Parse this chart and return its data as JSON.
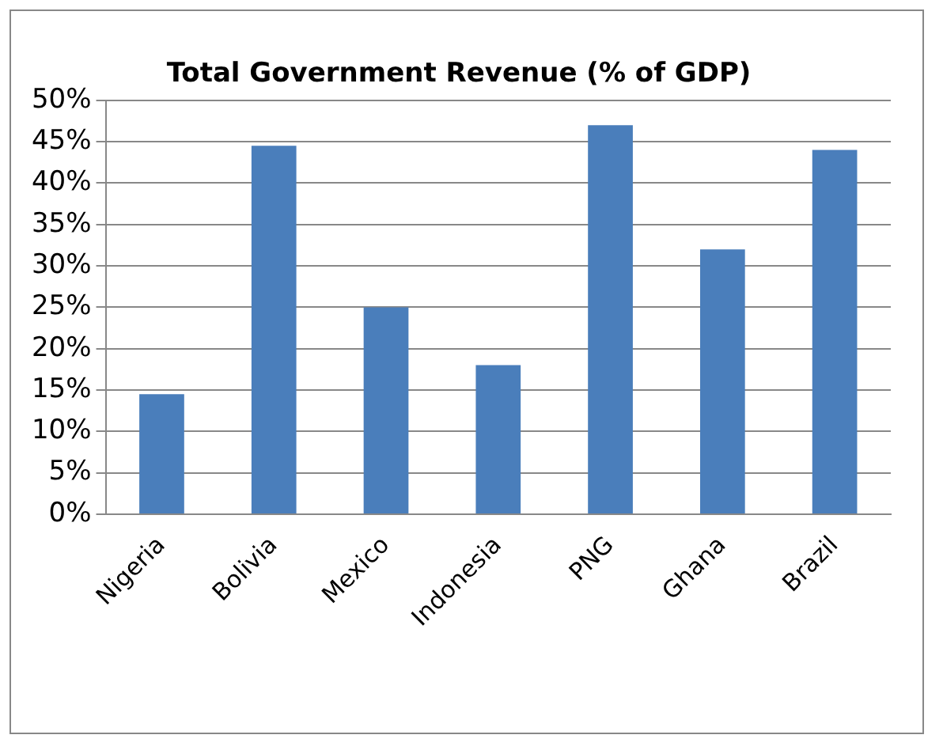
{
  "chart_data": {
    "type": "bar",
    "title": "Total Government Revenue (% of GDP)",
    "categories": [
      "Nigeria",
      "Bolivia",
      "Mexico",
      "Indonesia",
      "PNG",
      "Ghana",
      "Brazil"
    ],
    "values": [
      14.5,
      44.5,
      25,
      18,
      47,
      32,
      44
    ],
    "color": "#4a7ebb",
    "ylim": [
      0,
      50
    ],
    "yticks": [
      {
        "value": 0,
        "label": "0%"
      },
      {
        "value": 5,
        "label": "5%"
      },
      {
        "value": 10,
        "label": "10%"
      },
      {
        "value": 15,
        "label": "15%"
      },
      {
        "value": 20,
        "label": "20%"
      },
      {
        "value": 25,
        "label": "25%"
      },
      {
        "value": 30,
        "label": "30%"
      },
      {
        "value": 35,
        "label": "35%"
      },
      {
        "value": 40,
        "label": "40%"
      },
      {
        "value": 45,
        "label": "45%"
      },
      {
        "value": 50,
        "label": "50%"
      }
    ],
    "grid": "y",
    "legend": false
  }
}
